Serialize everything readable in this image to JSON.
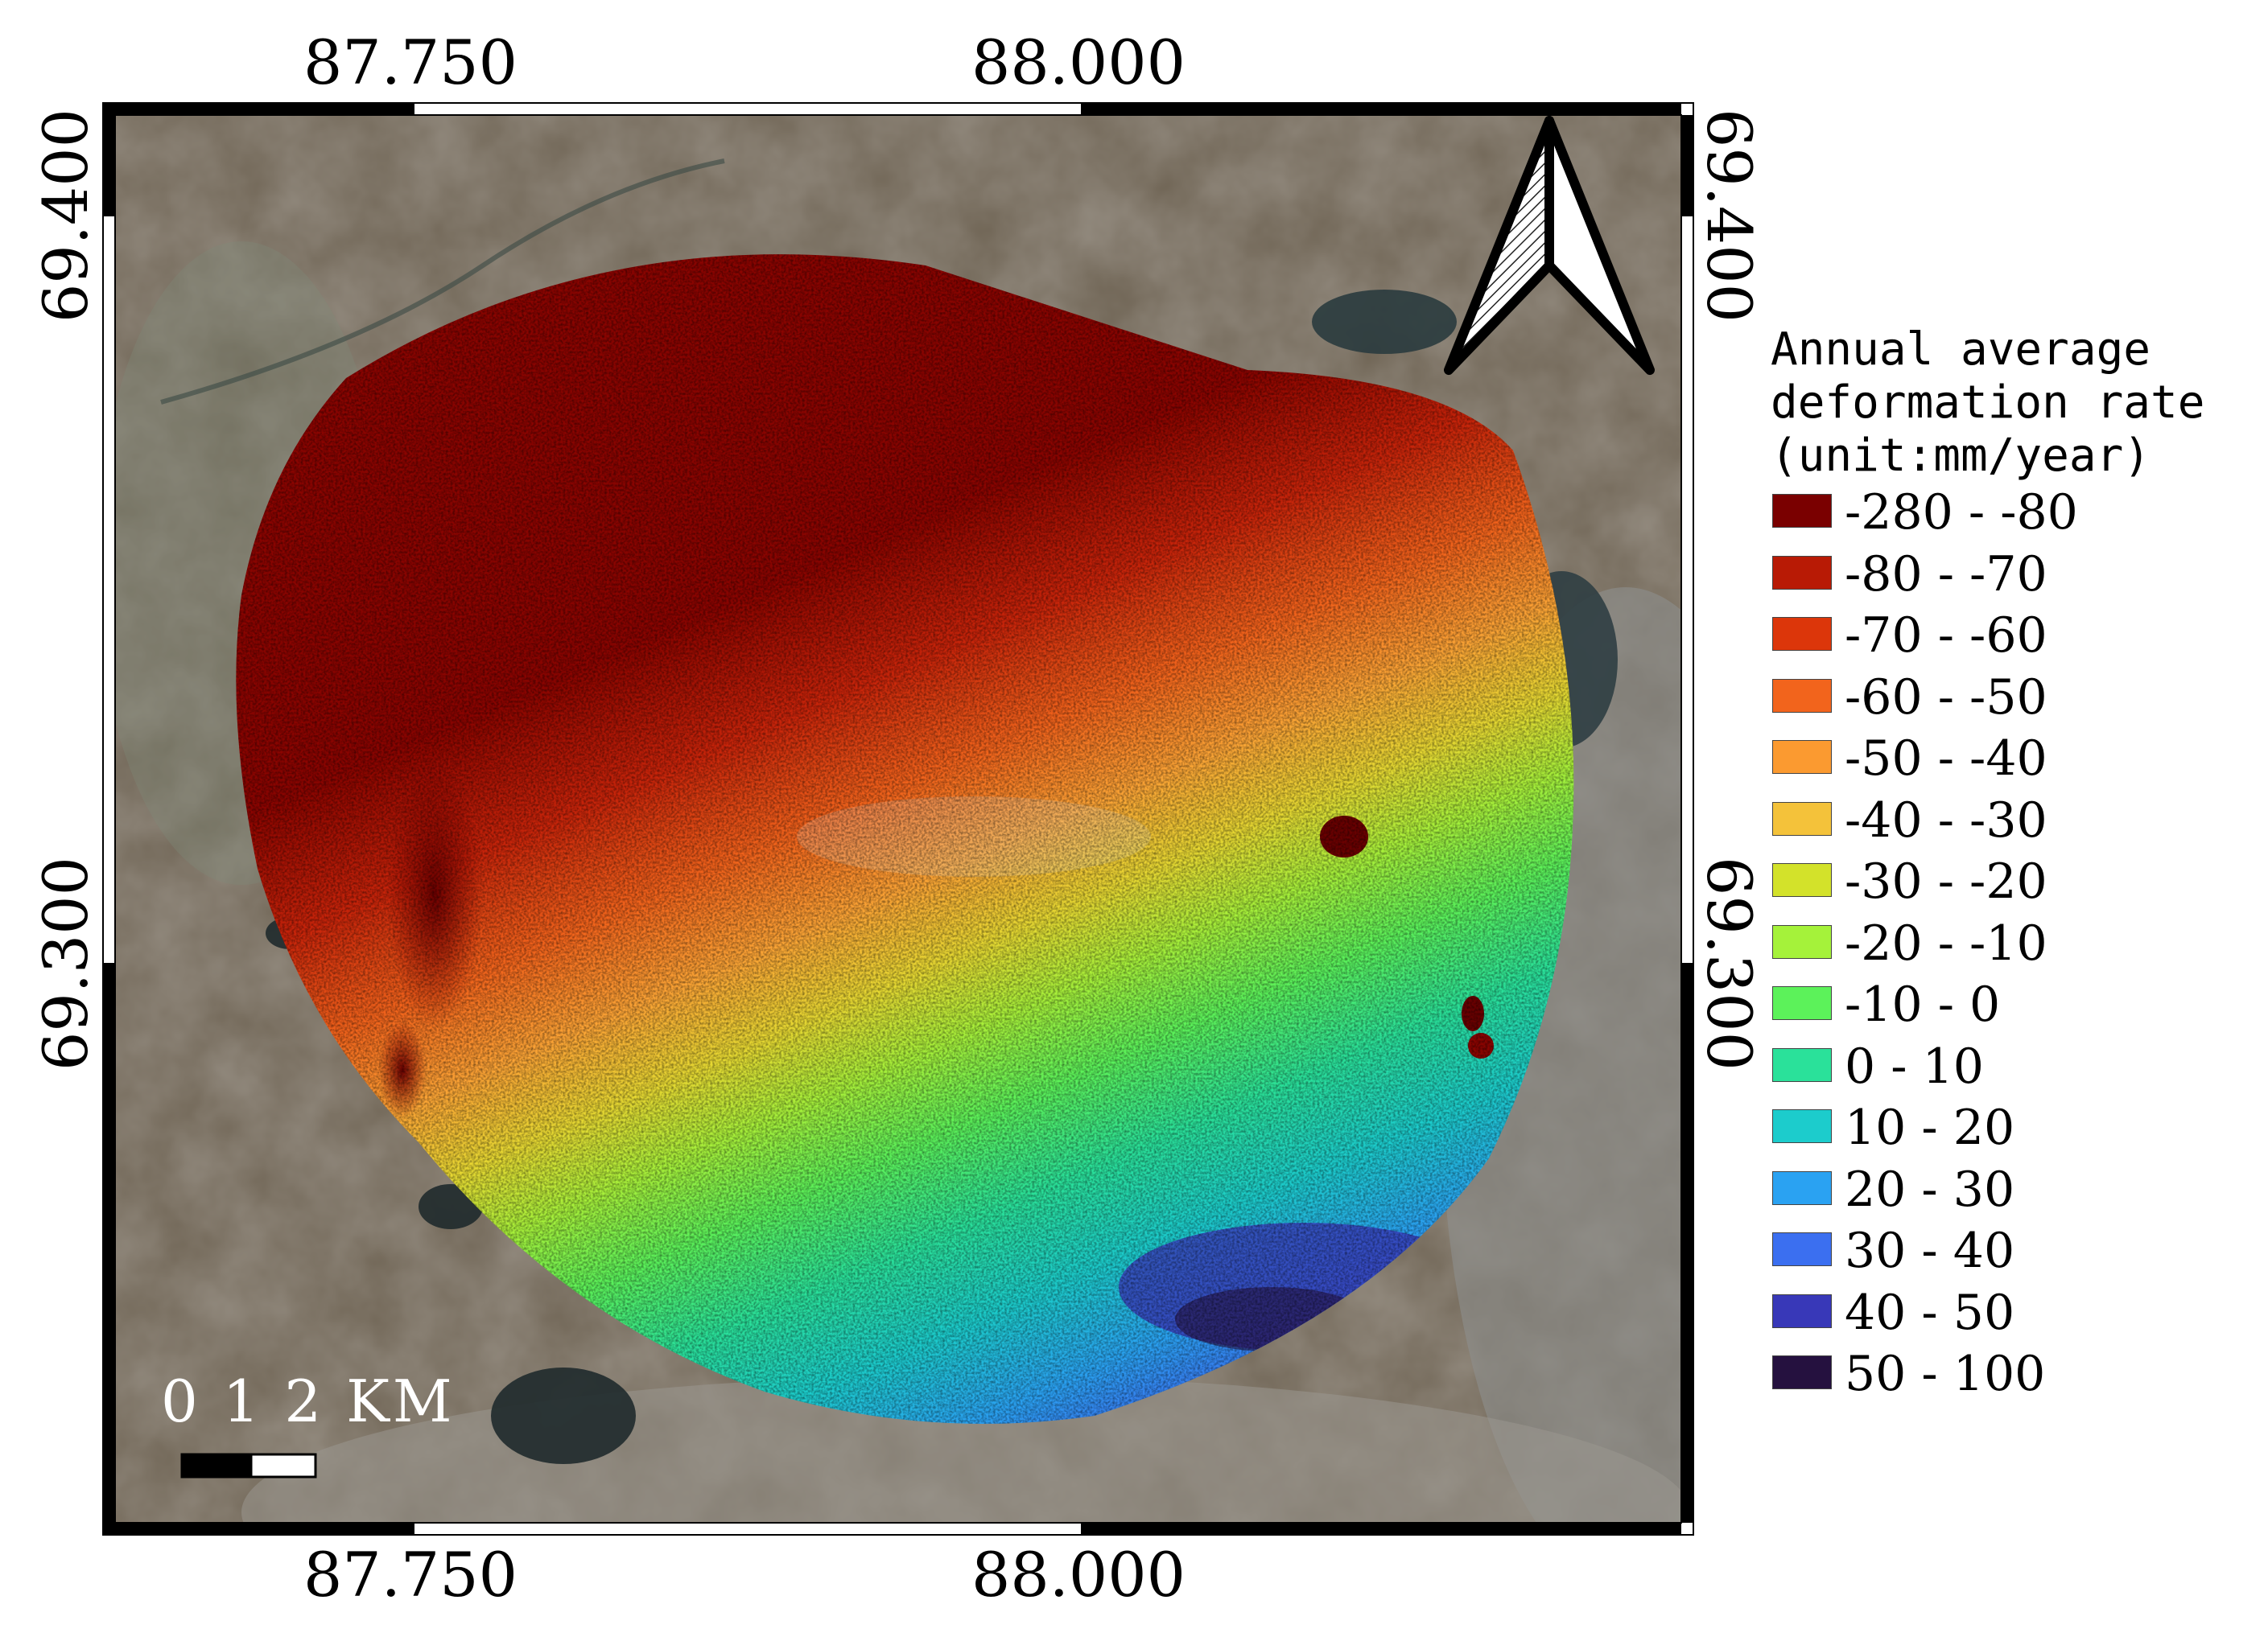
{
  "axes": {
    "top_ticks": [
      "87.750",
      "88.000"
    ],
    "bottom_ticks": [
      "87.750",
      "88.000"
    ],
    "left_ticks": [
      "69.400",
      "69.300"
    ],
    "right_ticks": [
      "69.400",
      "69.300"
    ]
  },
  "scale_bar": {
    "label": "0 1 2 KM"
  },
  "legend": {
    "title_lines": [
      "Annual average",
      "deformation rate",
      "(unit:mm/year)"
    ],
    "items": [
      {
        "label": "-280 - -80",
        "color": "#7a0000"
      },
      {
        "label": "-80 - -70",
        "color": "#b81a05"
      },
      {
        "label": "-70 - -60",
        "color": "#dc360a"
      },
      {
        "label": "-60 - -50",
        "color": "#f2641c"
      },
      {
        "label": "-50 - -40",
        "color": "#fb9a30"
      },
      {
        "label": "-40 - -30",
        "color": "#f4c23a"
      },
      {
        "label": "-30 - -20",
        "color": "#d3e22a"
      },
      {
        "label": "-20 - -10",
        "color": "#a5f23a"
      },
      {
        "label": "-10 - 0",
        "color": "#5cf25a"
      },
      {
        "label": "0 - 10",
        "color": "#2ae19a"
      },
      {
        "label": "10 - 20",
        "color": "#1ccccc"
      },
      {
        "label": "20 - 30",
        "color": "#2aa2f2"
      },
      {
        "label": "30 - 40",
        "color": "#3b6ff0"
      },
      {
        "label": "40 - 50",
        "color": "#3838b8"
      },
      {
        "label": "50 - 100",
        "color": "#25113f"
      }
    ]
  }
}
